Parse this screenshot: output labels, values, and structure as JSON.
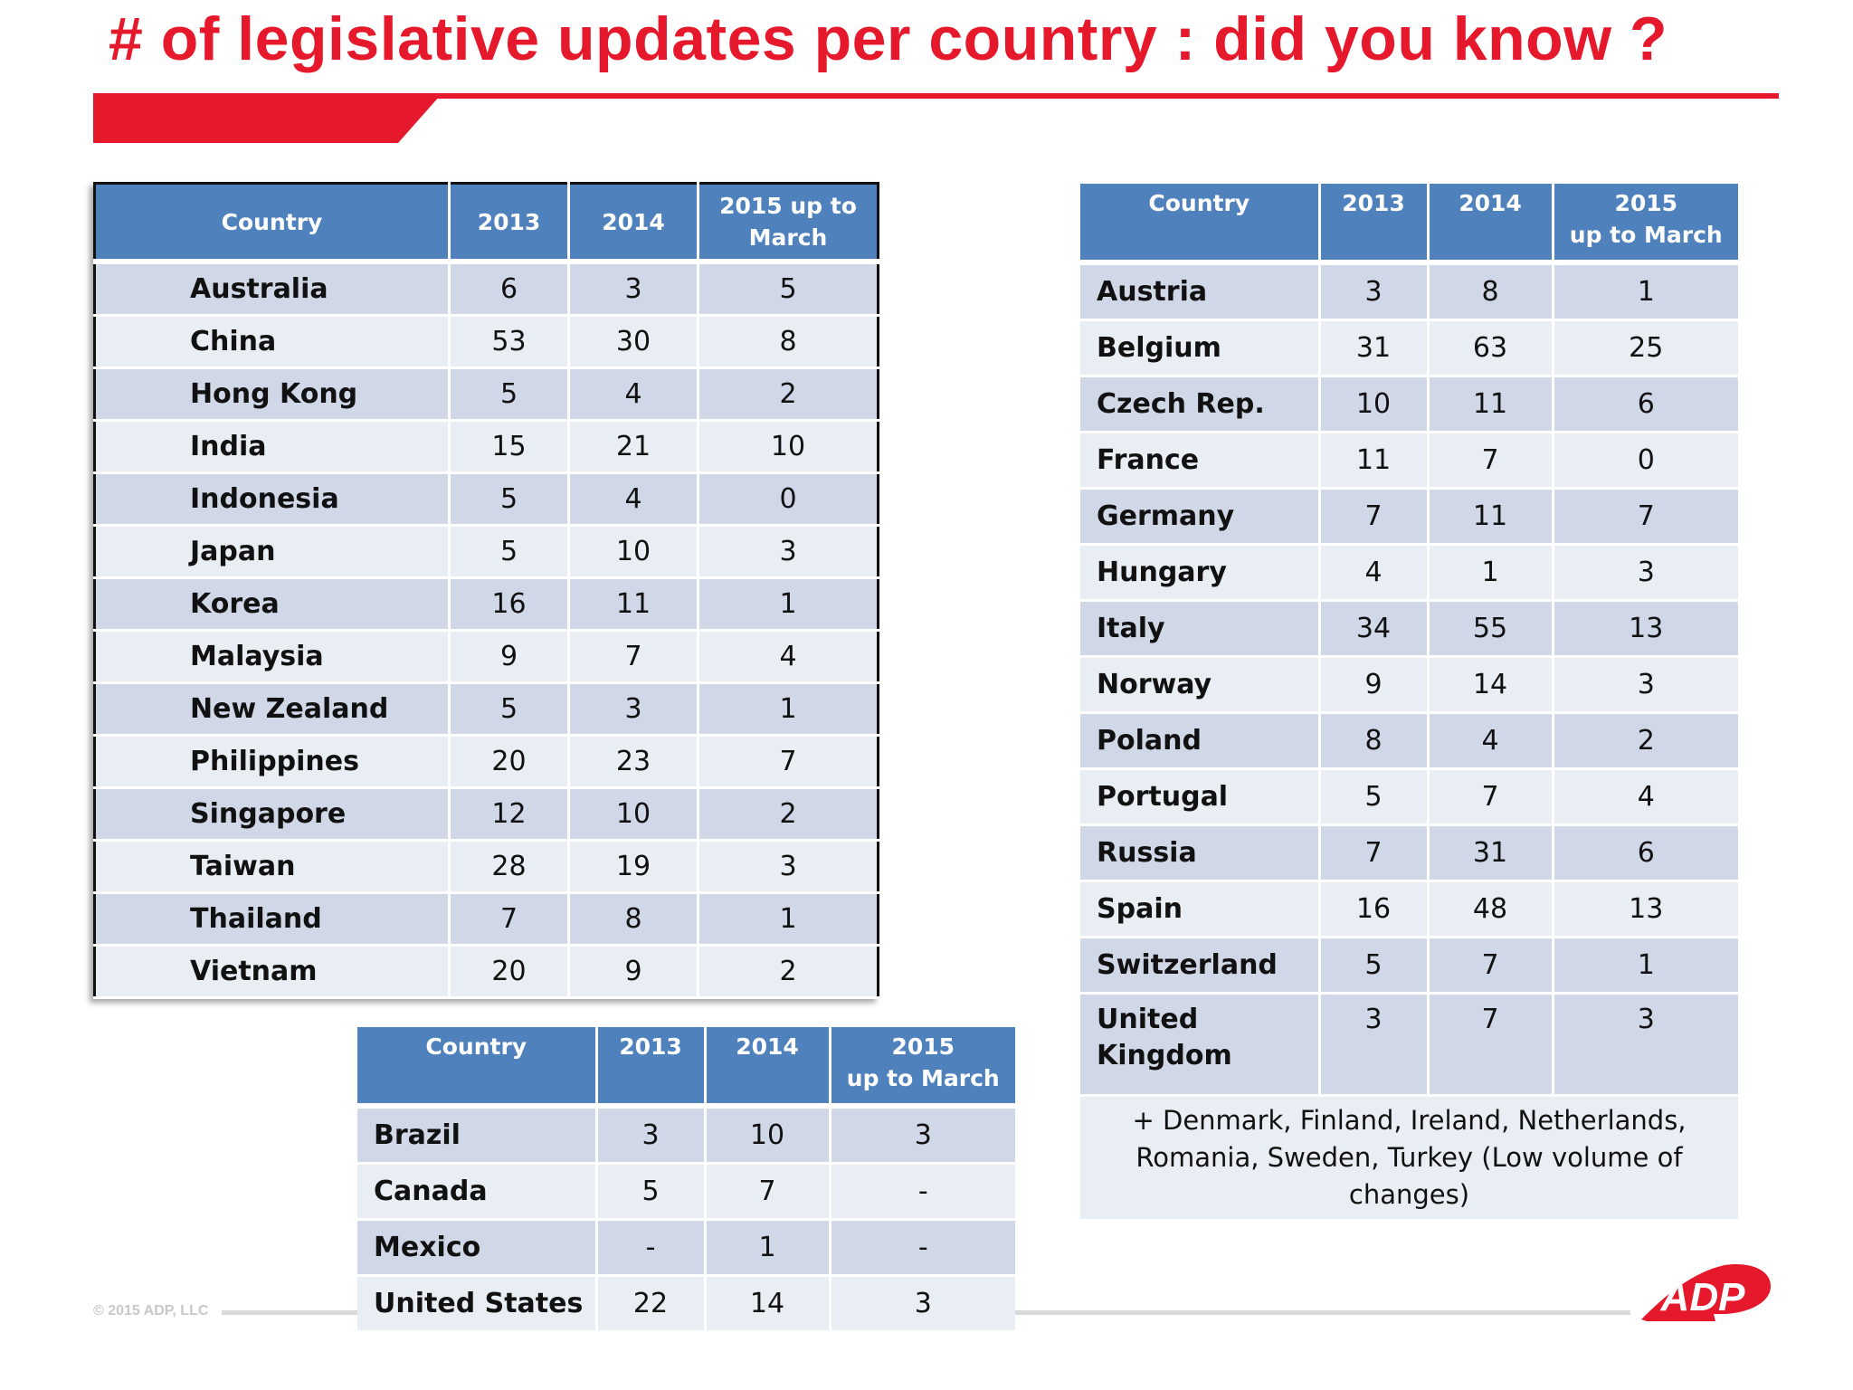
{
  "title": "# of legislative updates per country : did you know ?",
  "columns": {
    "country": "Country",
    "y2013": "2013",
    "y2014": "2014",
    "y2015_asia": "2015 up to March",
    "y2015_line1": "2015",
    "y2015_line2": "up to March"
  },
  "asia": {
    "rows": [
      {
        "country": "Australia",
        "v2013": "6",
        "v2014": "3",
        "v2015": "5"
      },
      {
        "country": "China",
        "v2013": "53",
        "v2014": "30",
        "v2015": "8"
      },
      {
        "country": "Hong Kong",
        "v2013": "5",
        "v2014": "4",
        "v2015": "2"
      },
      {
        "country": "India",
        "v2013": "15",
        "v2014": "21",
        "v2015": "10"
      },
      {
        "country": "Indonesia",
        "v2013": "5",
        "v2014": "4",
        "v2015": "0"
      },
      {
        "country": "Japan",
        "v2013": "5",
        "v2014": "10",
        "v2015": "3"
      },
      {
        "country": "Korea",
        "v2013": "16",
        "v2014": "11",
        "v2015": "1"
      },
      {
        "country": "Malaysia",
        "v2013": "9",
        "v2014": "7",
        "v2015": "4"
      },
      {
        "country": "New Zealand",
        "v2013": "5",
        "v2014": "3",
        "v2015": "1"
      },
      {
        "country": "Philippines",
        "v2013": "20",
        "v2014": "23",
        "v2015": "7"
      },
      {
        "country": "Singapore",
        "v2013": "12",
        "v2014": "10",
        "v2015": "2"
      },
      {
        "country": "Taiwan",
        "v2013": "28",
        "v2014": "19",
        "v2015": "3"
      },
      {
        "country": "Thailand",
        "v2013": "7",
        "v2014": "8",
        "v2015": "1"
      },
      {
        "country": "Vietnam",
        "v2013": "20",
        "v2014": "9",
        "v2015": "2"
      }
    ]
  },
  "europe": {
    "rows": [
      {
        "country": "Austria",
        "v2013": "3",
        "v2014": "8",
        "v2015": "1"
      },
      {
        "country": "Belgium",
        "v2013": "31",
        "v2014": "63",
        "v2015": "25"
      },
      {
        "country": "Czech Rep.",
        "v2013": "10",
        "v2014": "11",
        "v2015": "6"
      },
      {
        "country": "France",
        "v2013": "11",
        "v2014": "7",
        "v2015": "0"
      },
      {
        "country": "Germany",
        "v2013": "7",
        "v2014": "11",
        "v2015": "7"
      },
      {
        "country": "Hungary",
        "v2013": "4",
        "v2014": "1",
        "v2015": "3"
      },
      {
        "country": "Italy",
        "v2013": "34",
        "v2014": "55",
        "v2015": "13"
      },
      {
        "country": "Norway",
        "v2013": "9",
        "v2014": "14",
        "v2015": "3"
      },
      {
        "country": "Poland",
        "v2013": "8",
        "v2014": "4",
        "v2015": "2"
      },
      {
        "country": "Portugal",
        "v2013": "5",
        "v2014": "7",
        "v2015": "4"
      },
      {
        "country": "Russia",
        "v2013": "7",
        "v2014": "31",
        "v2015": "6"
      },
      {
        "country": "Spain",
        "v2013": "16",
        "v2014": "48",
        "v2015": "13"
      },
      {
        "country": "Switzerland",
        "v2013": "5",
        "v2014": "7",
        "v2015": "1"
      }
    ],
    "uk": {
      "country_line1": "United",
      "country_line2": "Kingdom",
      "v2013": "3",
      "v2014": "7",
      "v2015": "3"
    },
    "note": "+ Denmark, Finland, Ireland, Netherlands, Romania, Sweden, Turkey (Low volume of changes)"
  },
  "americas": {
    "rows": [
      {
        "country": "Brazil",
        "v2013": "3",
        "v2014": "10",
        "v2015": "3"
      },
      {
        "country": "Canada",
        "v2013": "5",
        "v2014": "7",
        "v2015": "-"
      },
      {
        "country": "Mexico",
        "v2013": "-",
        "v2014": "1",
        "v2015": "-"
      },
      {
        "country": "United States",
        "v2013": "22",
        "v2014": "14",
        "v2015": "3"
      }
    ]
  },
  "footer": {
    "copyright": "© 2015 ADP, LLC",
    "logo_text": "ADP"
  },
  "colors": {
    "brand_red": "#e5192b",
    "header_blue": "#4f81bd",
    "row_dark": "#d0d8e8",
    "row_light": "#e9edf4"
  }
}
